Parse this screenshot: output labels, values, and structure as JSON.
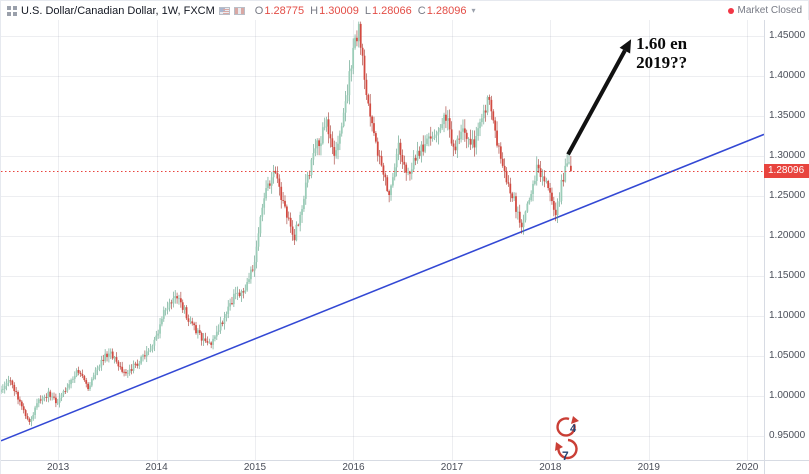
{
  "header": {
    "title": "U.S. Dollar/Canadian Dollar, 1W, FXCM",
    "ohlc": {
      "o_label": "O",
      "o": "1.28775",
      "h_label": "H",
      "h": "1.30009",
      "l_label": "L",
      "l": "1.28066",
      "c_label": "C",
      "c": "1.28096"
    },
    "ohlc_color": "#e34d46",
    "market_status": "Market Closed",
    "status_dot_color": "#f23645"
  },
  "price_tag": {
    "label": "1.28096",
    "price": 1.28096,
    "bg": "#e8443e"
  },
  "annotation": {
    "line1": "1.60 en",
    "line2": "2019??"
  },
  "watermark": {
    "digit_top": "4",
    "digit_bottom": "7"
  },
  "axes": {
    "y_ticks": [
      {
        "price": 1.45,
        "label": "1.45000"
      },
      {
        "price": 1.4,
        "label": "1.40000"
      },
      {
        "price": 1.35,
        "label": "1.35000"
      },
      {
        "price": 1.3,
        "label": "1.30000"
      },
      {
        "price": 1.25,
        "label": "1.25000"
      },
      {
        "price": 1.2,
        "label": "1.20000"
      },
      {
        "price": 1.15,
        "label": "1.15000"
      },
      {
        "price": 1.1,
        "label": "1.10000"
      },
      {
        "price": 1.05,
        "label": "1.05000"
      },
      {
        "price": 1.0,
        "label": "1.00000"
      },
      {
        "price": 0.95,
        "label": "0.95000"
      }
    ],
    "x_ticks": [
      {
        "year": 2013,
        "label": "2013"
      },
      {
        "year": 2014,
        "label": "2014"
      },
      {
        "year": 2015,
        "label": "2015"
      },
      {
        "year": 2016,
        "label": "2016"
      },
      {
        "year": 2017,
        "label": "2017"
      },
      {
        "year": 2018,
        "label": "2018"
      },
      {
        "year": 2019,
        "label": "2019"
      },
      {
        "year": 2020,
        "label": "2020"
      }
    ]
  },
  "chart_data": {
    "type": "candlestick",
    "symbol": "USD/CAD",
    "title": "U.S. Dollar/Canadian Dollar, 1W, FXCM",
    "timeframe": "1W",
    "x_domain": [
      2012.42,
      2020.17
    ],
    "y_domain": [
      0.92,
      1.47
    ],
    "candles_end_year": 2018.21,
    "weeks_per_year": 52,
    "noise_seed": 20180321,
    "price_path_anchors": [
      [
        2012.42,
        1.005
      ],
      [
        2012.5,
        1.022
      ],
      [
        2012.58,
        1.0
      ],
      [
        2012.7,
        0.965
      ],
      [
        2012.8,
        0.992
      ],
      [
        2012.9,
        1.002
      ],
      [
        2013.0,
        0.992
      ],
      [
        2013.1,
        1.014
      ],
      [
        2013.2,
        1.032
      ],
      [
        2013.3,
        1.01
      ],
      [
        2013.42,
        1.038
      ],
      [
        2013.52,
        1.057
      ],
      [
        2013.62,
        1.034
      ],
      [
        2013.72,
        1.03
      ],
      [
        2013.85,
        1.048
      ],
      [
        2013.98,
        1.068
      ],
      [
        2014.08,
        1.108
      ],
      [
        2014.22,
        1.126
      ],
      [
        2014.33,
        1.094
      ],
      [
        2014.45,
        1.074
      ],
      [
        2014.55,
        1.063
      ],
      [
        2014.65,
        1.088
      ],
      [
        2014.78,
        1.122
      ],
      [
        2014.88,
        1.131
      ],
      [
        2015.0,
        1.164
      ],
      [
        2015.08,
        1.248
      ],
      [
        2015.2,
        1.282
      ],
      [
        2015.28,
        1.243
      ],
      [
        2015.4,
        1.197
      ],
      [
        2015.5,
        1.252
      ],
      [
        2015.58,
        1.298
      ],
      [
        2015.66,
        1.32
      ],
      [
        2015.73,
        1.344
      ],
      [
        2015.8,
        1.298
      ],
      [
        2015.88,
        1.332
      ],
      [
        2015.96,
        1.402
      ],
      [
        2016.05,
        1.462
      ],
      [
        2016.11,
        1.402
      ],
      [
        2016.18,
        1.338
      ],
      [
        2016.28,
        1.286
      ],
      [
        2016.37,
        1.248
      ],
      [
        2016.46,
        1.312
      ],
      [
        2016.56,
        1.278
      ],
      [
        2016.66,
        1.302
      ],
      [
        2016.76,
        1.32
      ],
      [
        2016.86,
        1.332
      ],
      [
        2016.94,
        1.351
      ],
      [
        2017.02,
        1.308
      ],
      [
        2017.12,
        1.33
      ],
      [
        2017.22,
        1.312
      ],
      [
        2017.3,
        1.348
      ],
      [
        2017.38,
        1.372
      ],
      [
        2017.46,
        1.318
      ],
      [
        2017.56,
        1.268
      ],
      [
        2017.64,
        1.24
      ],
      [
        2017.71,
        1.208
      ],
      [
        2017.79,
        1.252
      ],
      [
        2017.87,
        1.287
      ],
      [
        2017.94,
        1.272
      ],
      [
        2018.0,
        1.25
      ],
      [
        2018.06,
        1.229
      ],
      [
        2018.12,
        1.268
      ],
      [
        2018.17,
        1.298
      ],
      [
        2018.21,
        1.281
      ]
    ],
    "last_candle": {
      "open": 1.28775,
      "high": 1.30009,
      "low": 1.28066,
      "close": 1.28096
    },
    "trendline": {
      "from": [
        2012.42,
        0.944
      ],
      "to": [
        2020.17,
        1.327
      ],
      "color": "#3348d4"
    },
    "current_price_line": {
      "price": 1.28096,
      "color": "#e8443e"
    },
    "annotation_arrow": {
      "from": [
        2018.18,
        1.302
      ],
      "to": [
        2018.82,
        1.446
      ],
      "color": "#111111"
    },
    "watermark_pos": {
      "year": 2017.99,
      "price": 0.976
    },
    "colors": {
      "up_body": "#9bcdb8",
      "up_wick": "#569b80",
      "down_body": "#d24a41",
      "down_wick": "#a2362e",
      "grid": "rgba(140,150,170,0.16)"
    }
  }
}
